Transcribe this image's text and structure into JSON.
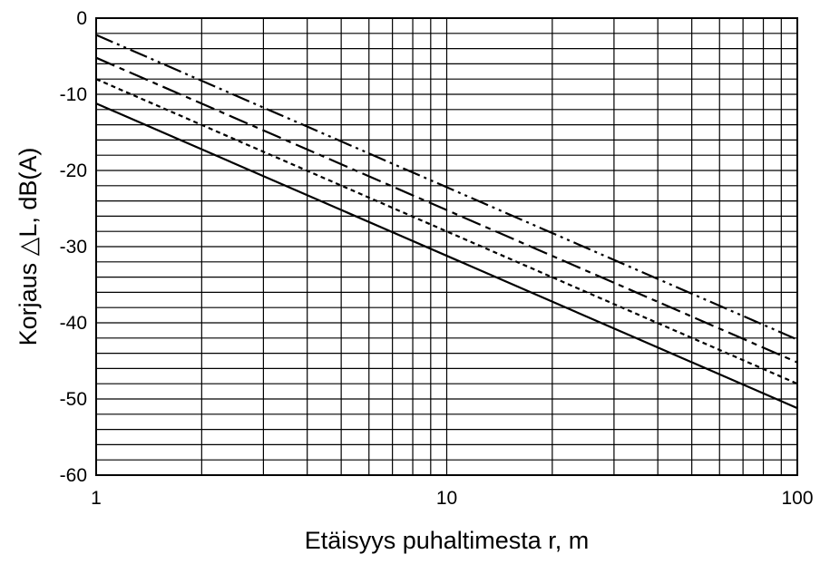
{
  "chart_data": {
    "type": "line",
    "title": "",
    "xlabel": "Etäisyys puhaltimesta r, m",
    "ylabel": "Korjaus △L, dB(A)",
    "xscale": "log",
    "xlim": [
      1,
      100
    ],
    "ylim": [
      -60,
      0
    ],
    "grid": true,
    "x_ticks": [
      {
        "value": 1,
        "label": "1"
      },
      {
        "value": 10,
        "label": "10"
      },
      {
        "value": 100,
        "label": "100"
      }
    ],
    "y_ticks": [
      {
        "value": 0,
        "label": "0"
      },
      {
        "value": -10,
        "label": "-10"
      },
      {
        "value": -20,
        "label": "-20"
      },
      {
        "value": -30,
        "label": "-30"
      },
      {
        "value": -40,
        "label": "-40"
      },
      {
        "value": -50,
        "label": "-50"
      },
      {
        "value": -60,
        "label": "-60"
      }
    ],
    "series": [
      {
        "line_style": "dash-dot-dot",
        "x": [
          1,
          100
        ],
        "values": [
          -2.2,
          -42.2
        ]
      },
      {
        "line_style": "long-dash",
        "x": [
          1,
          100
        ],
        "values": [
          -5.2,
          -45.2
        ]
      },
      {
        "line_style": "short-dash",
        "x": [
          1,
          100
        ],
        "values": [
          -8.0,
          -48.0
        ]
      },
      {
        "line_style": "solid",
        "x": [
          1,
          100
        ],
        "values": [
          -11.2,
          -51.2
        ]
      }
    ]
  }
}
